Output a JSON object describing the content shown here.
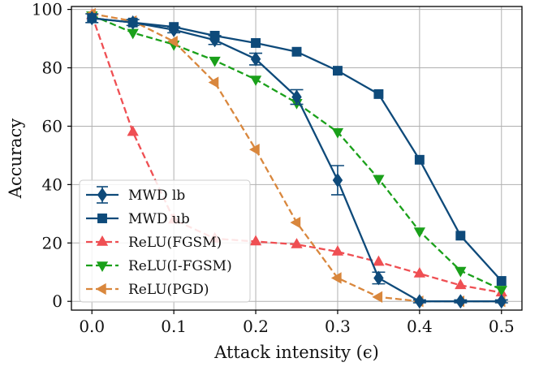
{
  "chart_data": {
    "type": "line",
    "title": "",
    "xlabel": "Attack intensity (ϵ)",
    "ylabel": "Accuracy",
    "xlim": [
      -0.025,
      0.525
    ],
    "ylim": [
      -3,
      101
    ],
    "xticks": [
      0.0,
      0.1,
      0.2,
      0.3,
      0.4,
      0.5
    ],
    "xtick_labels": [
      "0.0",
      "0.1",
      "0.2",
      "0.3",
      "0.4",
      "0.5"
    ],
    "yticks": [
      0,
      20,
      40,
      60,
      80,
      100
    ],
    "ytick_labels": [
      "0",
      "20",
      "40",
      "60",
      "80",
      "100"
    ],
    "grid": true,
    "legend_position": "bottom-left",
    "x": [
      0.0,
      0.05,
      0.1,
      0.15,
      0.2,
      0.25,
      0.3,
      0.35,
      0.4,
      0.45,
      0.5
    ],
    "series": [
      {
        "name": "MWD lb",
        "color": "#0e4a7a",
        "linestyle": "solid",
        "marker": "diamond",
        "values": [
          97,
          95.5,
          93,
          89.5,
          83,
          70,
          41.5,
          8,
          0,
          0,
          0
        ],
        "errors": [
          1.5,
          1,
          1,
          1.5,
          2,
          2.5,
          5,
          2,
          0.5,
          0.5,
          0.5
        ]
      },
      {
        "name": "MWD ub",
        "color": "#0e4a7a",
        "linestyle": "solid",
        "marker": "square",
        "values": [
          97,
          95.5,
          94,
          91,
          88.5,
          85.5,
          79,
          71,
          48.5,
          22.5,
          7
        ]
      },
      {
        "name": "ReLU(FGSM)",
        "color": "#ef4f53",
        "linestyle": "dashed",
        "marker": "triangle-up",
        "values": [
          98,
          58,
          28,
          21.5,
          20.5,
          19.5,
          17,
          13.5,
          9.5,
          5.5,
          3
        ]
      },
      {
        "name": "ReLU(I-FGSM)",
        "color": "#1aa01a",
        "linestyle": "dashed",
        "marker": "triangle-down",
        "values": [
          98,
          92,
          88,
          82.5,
          76,
          68,
          58,
          42,
          24,
          10.5,
          4
        ]
      },
      {
        "name": "ReLU(PGD)",
        "color": "#d9873d",
        "linestyle": "dashed",
        "marker": "triangle-left",
        "values": [
          98.5,
          96,
          89,
          75,
          52,
          27,
          8,
          1.5,
          0,
          0,
          0
        ]
      }
    ]
  }
}
